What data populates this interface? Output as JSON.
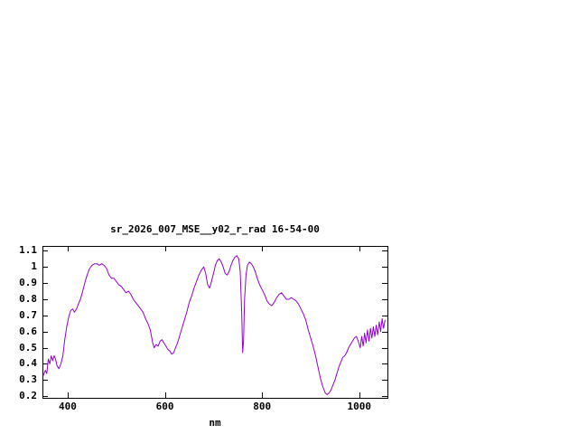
{
  "page": {
    "background": "#ffffff"
  },
  "chart_data": {
    "type": "line",
    "title": "sr_2026_007_MSE__y02_r_rad 16-54-00",
    "xlabel": "nm",
    "ylabel": "",
    "grid": false,
    "legend": "none",
    "line_color": "#9400d3",
    "axis_color": "#000000",
    "xlim": [
      348,
      1058
    ],
    "ylim": [
      0.19,
      1.13
    ],
    "x_ticks": [
      {
        "v": 400,
        "label": "400"
      },
      {
        "v": 600,
        "label": "600"
      },
      {
        "v": 800,
        "label": "800"
      },
      {
        "v": 1000,
        "label": "1000"
      }
    ],
    "y_ticks": [
      {
        "v": 0.2,
        "label": "0.2"
      },
      {
        "v": 0.3,
        "label": "0.3"
      },
      {
        "v": 0.4,
        "label": "0.4"
      },
      {
        "v": 0.5,
        "label": "0.5"
      },
      {
        "v": 0.6,
        "label": "0.6"
      },
      {
        "v": 0.7,
        "label": "0.7"
      },
      {
        "v": 0.8,
        "label": "0.8"
      },
      {
        "v": 0.9,
        "label": "0.9"
      },
      {
        "v": 1.0,
        "label": "1"
      },
      {
        "v": 1.1,
        "label": "1.1"
      }
    ],
    "series": [
      {
        "name": "sr_2026_007_MSE__y02_r_rad",
        "points": [
          [
            350,
            0.33
          ],
          [
            354,
            0.36
          ],
          [
            357,
            0.34
          ],
          [
            360,
            0.43
          ],
          [
            363,
            0.4
          ],
          [
            366,
            0.45
          ],
          [
            369,
            0.42
          ],
          [
            372,
            0.45
          ],
          [
            375,
            0.43
          ],
          [
            378,
            0.39
          ],
          [
            382,
            0.37
          ],
          [
            386,
            0.4
          ],
          [
            390,
            0.45
          ],
          [
            394,
            0.55
          ],
          [
            398,
            0.63
          ],
          [
            402,
            0.69
          ],
          [
            406,
            0.73
          ],
          [
            410,
            0.74
          ],
          [
            414,
            0.72
          ],
          [
            418,
            0.74
          ],
          [
            422,
            0.77
          ],
          [
            426,
            0.8
          ],
          [
            430,
            0.84
          ],
          [
            435,
            0.9
          ],
          [
            440,
            0.95
          ],
          [
            445,
            0.99
          ],
          [
            450,
            1.01
          ],
          [
            455,
            1.02
          ],
          [
            460,
            1.02
          ],
          [
            465,
            1.01
          ],
          [
            470,
            1.02
          ],
          [
            475,
            1.01
          ],
          [
            480,
            0.99
          ],
          [
            485,
            0.95
          ],
          [
            490,
            0.93
          ],
          [
            495,
            0.93
          ],
          [
            500,
            0.91
          ],
          [
            505,
            0.89
          ],
          [
            510,
            0.88
          ],
          [
            515,
            0.86
          ],
          [
            520,
            0.84
          ],
          [
            525,
            0.85
          ],
          [
            530,
            0.83
          ],
          [
            535,
            0.8
          ],
          [
            540,
            0.78
          ],
          [
            545,
            0.76
          ],
          [
            550,
            0.74
          ],
          [
            555,
            0.72
          ],
          [
            560,
            0.68
          ],
          [
            565,
            0.65
          ],
          [
            570,
            0.61
          ],
          [
            575,
            0.53
          ],
          [
            578,
            0.5
          ],
          [
            582,
            0.52
          ],
          [
            586,
            0.51
          ],
          [
            590,
            0.54
          ],
          [
            594,
            0.55
          ],
          [
            598,
            0.53
          ],
          [
            602,
            0.51
          ],
          [
            606,
            0.49
          ],
          [
            610,
            0.48
          ],
          [
            614,
            0.46
          ],
          [
            618,
            0.47
          ],
          [
            622,
            0.5
          ],
          [
            626,
            0.53
          ],
          [
            630,
            0.57
          ],
          [
            635,
            0.62
          ],
          [
            640,
            0.67
          ],
          [
            645,
            0.72
          ],
          [
            650,
            0.78
          ],
          [
            655,
            0.82
          ],
          [
            660,
            0.87
          ],
          [
            665,
            0.91
          ],
          [
            670,
            0.95
          ],
          [
            675,
            0.98
          ],
          [
            680,
            1.0
          ],
          [
            684,
            0.96
          ],
          [
            688,
            0.89
          ],
          [
            692,
            0.87
          ],
          [
            696,
            0.91
          ],
          [
            700,
            0.96
          ],
          [
            704,
            1.01
          ],
          [
            708,
            1.04
          ],
          [
            712,
            1.05
          ],
          [
            716,
            1.03
          ],
          [
            720,
            1.0
          ],
          [
            724,
            0.96
          ],
          [
            728,
            0.95
          ],
          [
            732,
            0.97
          ],
          [
            736,
            1.01
          ],
          [
            740,
            1.04
          ],
          [
            744,
            1.06
          ],
          [
            748,
            1.07
          ],
          [
            752,
            1.05
          ],
          [
            755,
            0.97
          ],
          [
            758,
            0.72
          ],
          [
            760,
            0.47
          ],
          [
            762,
            0.55
          ],
          [
            764,
            0.8
          ],
          [
            767,
            0.95
          ],
          [
            770,
            1.01
          ],
          [
            774,
            1.03
          ],
          [
            778,
            1.02
          ],
          [
            782,
            1.0
          ],
          [
            786,
            0.97
          ],
          [
            790,
            0.93
          ],
          [
            795,
            0.89
          ],
          [
            800,
            0.86
          ],
          [
            805,
            0.83
          ],
          [
            810,
            0.79
          ],
          [
            815,
            0.77
          ],
          [
            820,
            0.76
          ],
          [
            825,
            0.78
          ],
          [
            830,
            0.81
          ],
          [
            835,
            0.83
          ],
          [
            840,
            0.84
          ],
          [
            845,
            0.82
          ],
          [
            850,
            0.8
          ],
          [
            855,
            0.8
          ],
          [
            860,
            0.81
          ],
          [
            865,
            0.8
          ],
          [
            870,
            0.79
          ],
          [
            875,
            0.77
          ],
          [
            880,
            0.74
          ],
          [
            885,
            0.71
          ],
          [
            890,
            0.67
          ],
          [
            895,
            0.61
          ],
          [
            900,
            0.56
          ],
          [
            905,
            0.51
          ],
          [
            910,
            0.45
          ],
          [
            915,
            0.38
          ],
          [
            920,
            0.31
          ],
          [
            925,
            0.26
          ],
          [
            930,
            0.22
          ],
          [
            934,
            0.21
          ],
          [
            938,
            0.22
          ],
          [
            942,
            0.24
          ],
          [
            946,
            0.27
          ],
          [
            950,
            0.3
          ],
          [
            954,
            0.34
          ],
          [
            958,
            0.38
          ],
          [
            962,
            0.41
          ],
          [
            966,
            0.44
          ],
          [
            970,
            0.45
          ],
          [
            974,
            0.47
          ],
          [
            978,
            0.5
          ],
          [
            982,
            0.52
          ],
          [
            986,
            0.54
          ],
          [
            990,
            0.56
          ],
          [
            994,
            0.57
          ],
          [
            998,
            0.54
          ],
          [
            1002,
            0.5
          ],
          [
            1005,
            0.57
          ],
          [
            1008,
            0.51
          ],
          [
            1011,
            0.59
          ],
          [
            1014,
            0.53
          ],
          [
            1017,
            0.61
          ],
          [
            1020,
            0.54
          ],
          [
            1023,
            0.62
          ],
          [
            1026,
            0.56
          ],
          [
            1029,
            0.63
          ],
          [
            1032,
            0.57
          ],
          [
            1035,
            0.64
          ],
          [
            1038,
            0.58
          ],
          [
            1041,
            0.66
          ],
          [
            1044,
            0.6
          ],
          [
            1047,
            0.68
          ],
          [
            1050,
            0.62
          ],
          [
            1053,
            0.67
          ]
        ]
      }
    ]
  }
}
